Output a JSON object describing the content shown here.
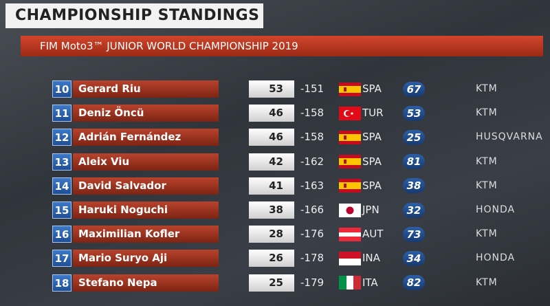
{
  "header": {
    "title": "CHAMPIONSHIP STANDINGS",
    "subtitle": "FIM Moto3™ JUNIOR WORLD CHAMPIONSHIP 2019"
  },
  "table": {
    "rows": [
      {
        "position": 10,
        "name": "Gerard Riu",
        "points": 53,
        "gap": -151,
        "country": "SPA",
        "number": 67,
        "team": "KTM"
      },
      {
        "position": 11,
        "name": "Deniz Öncü",
        "points": 46,
        "gap": -158,
        "country": "TUR",
        "number": 53,
        "team": "KTM"
      },
      {
        "position": 12,
        "name": "Adrián Fernández",
        "points": 46,
        "gap": -158,
        "country": "SPA",
        "number": 25,
        "team": "HUSQVARNA"
      },
      {
        "position": 13,
        "name": "Aleix Viu",
        "points": 42,
        "gap": -162,
        "country": "SPA",
        "number": 81,
        "team": "KTM"
      },
      {
        "position": 14,
        "name": "David Salvador",
        "points": 41,
        "gap": -163,
        "country": "SPA",
        "number": 38,
        "team": "KTM"
      },
      {
        "position": 15,
        "name": "Haruki Noguchi",
        "points": 38,
        "gap": -166,
        "country": "JPN",
        "number": 32,
        "team": "HONDA"
      },
      {
        "position": 16,
        "name": "Maximilian Kofler",
        "points": 28,
        "gap": -176,
        "country": "AUT",
        "number": 73,
        "team": "KTM"
      },
      {
        "position": 17,
        "name": "Mario Suryo Aji",
        "points": 26,
        "gap": -178,
        "country": "INA",
        "number": 34,
        "team": "HONDA"
      },
      {
        "position": 18,
        "name": "Stefano Nepa",
        "points": 25,
        "gap": -179,
        "country": "ITA",
        "number": 82,
        "team": "KTM"
      }
    ]
  }
}
